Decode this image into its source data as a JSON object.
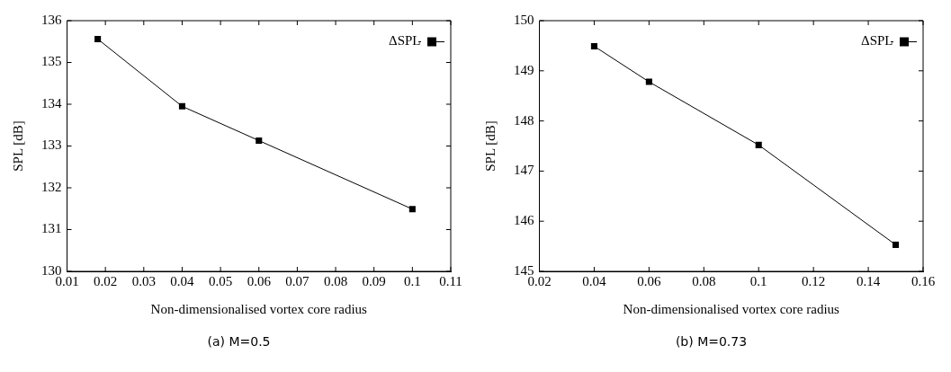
{
  "chart_data": [
    {
      "type": "line",
      "title": "(a) M=0.5",
      "xlabel": "Non-dimensionalised vortex core radius",
      "ylabel": "SPL [dB]",
      "x": [
        0.018,
        0.04,
        0.06,
        0.1
      ],
      "series": [
        {
          "name": "ΔSPL",
          "color": "#000000",
          "values": [
            135.56,
            133.95,
            133.13,
            131.49
          ]
        }
      ],
      "xlim": [
        0.01,
        0.11
      ],
      "xticks": [
        0.01,
        0.02,
        0.03,
        0.04,
        0.05,
        0.06,
        0.07,
        0.08,
        0.09,
        0.1,
        0.11
      ],
      "ylim": [
        130,
        136
      ],
      "yticks": [
        130,
        131,
        132,
        133,
        134,
        135,
        136
      ],
      "legend": "top right",
      "marker": "square",
      "line_style": "solid",
      "grid": false
    },
    {
      "type": "line",
      "title": "(b) M=0.73",
      "xlabel": "Non-dimensionalised vortex core radius",
      "ylabel": "SPL [dB]",
      "x": [
        0.04,
        0.06,
        0.1,
        0.15
      ],
      "series": [
        {
          "name": "ΔSPL",
          "color": "#000000",
          "values": [
            149.49,
            148.78,
            147.52,
            145.53
          ]
        }
      ],
      "xlim": [
        0.02,
        0.16
      ],
      "xticks": [
        0.02,
        0.04,
        0.06,
        0.08,
        0.1,
        0.12,
        0.14,
        0.16
      ],
      "ylim": [
        145,
        150
      ],
      "yticks": [
        145,
        146,
        147,
        148,
        149,
        150
      ],
      "legend": "top right",
      "marker": "square",
      "line_style": "solid",
      "grid": false
    }
  ]
}
